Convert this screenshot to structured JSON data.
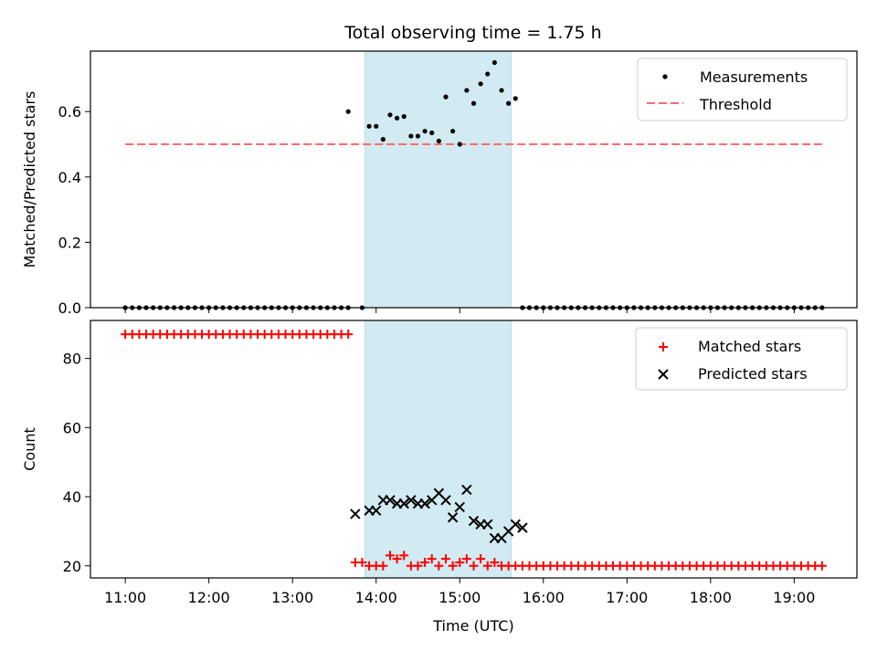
{
  "figure": {
    "title": "Total observing time = 1.75 h"
  },
  "chart_data": [
    {
      "type": "scatter",
      "panel": "top",
      "ylabel": "Matched/Predicted stars",
      "xlabel": "",
      "ylim": [
        0,
        0.785
      ],
      "xlim": [
        "10:35",
        "19:45"
      ],
      "yticks": [
        0.0,
        0.2,
        0.4,
        0.6
      ],
      "ytick_labels": [
        "0.0",
        "0.2",
        "0.4",
        "0.6"
      ],
      "shaded_region": {
        "start": "13:52",
        "end": "15:37",
        "color": "#add8e6"
      },
      "threshold": {
        "name": "Threshold",
        "value": 0.5,
        "start": "11:00",
        "end": "19:20",
        "color": "#ff6b6b",
        "style": "dashed"
      },
      "legend": {
        "placement": "top-right",
        "entries": [
          "Measurements",
          "Threshold"
        ]
      },
      "grid": false,
      "series": [
        {
          "name": "Measurements",
          "color": "#000000",
          "marker": "dot",
          "zero_run_1": {
            "start": "11:00",
            "end": "13:40",
            "step_minutes": 5,
            "value": 0
          },
          "zero_point": {
            "x": "13:50",
            "y": 0
          },
          "points": [
            {
              "x": "13:40",
              "y": 0.6
            },
            {
              "x": "13:55",
              "y": 0.555
            },
            {
              "x": "14:00",
              "y": 0.555
            },
            {
              "x": "14:05",
              "y": 0.515
            },
            {
              "x": "14:10",
              "y": 0.59
            },
            {
              "x": "14:15",
              "y": 0.58
            },
            {
              "x": "14:20",
              "y": 0.585
            },
            {
              "x": "14:25",
              "y": 0.525
            },
            {
              "x": "14:30",
              "y": 0.525
            },
            {
              "x": "14:35",
              "y": 0.54
            },
            {
              "x": "14:40",
              "y": 0.535
            },
            {
              "x": "14:45",
              "y": 0.51
            },
            {
              "x": "14:50",
              "y": 0.645
            },
            {
              "x": "14:55",
              "y": 0.54
            },
            {
              "x": "15:00",
              "y": 0.5
            },
            {
              "x": "15:05",
              "y": 0.665
            },
            {
              "x": "15:10",
              "y": 0.625
            },
            {
              "x": "15:15",
              "y": 0.685
            },
            {
              "x": "15:20",
              "y": 0.715
            },
            {
              "x": "15:25",
              "y": 0.75
            },
            {
              "x": "15:30",
              "y": 0.665
            },
            {
              "x": "15:35",
              "y": 0.625
            },
            {
              "x": "15:40",
              "y": 0.64
            }
          ],
          "zero_run_2": {
            "start": "15:45",
            "end": "19:20",
            "step_minutes": 5,
            "value": 0
          }
        }
      ]
    },
    {
      "type": "scatter",
      "panel": "bottom",
      "ylabel": "Count",
      "xlabel": "Time (UTC)",
      "ylim": [
        16.5,
        91
      ],
      "xlim": [
        "10:35",
        "19:45"
      ],
      "yticks": [
        20,
        40,
        60,
        80
      ],
      "ytick_labels": [
        "20",
        "40",
        "60",
        "80"
      ],
      "xticks": [
        "11:00",
        "12:00",
        "13:00",
        "14:00",
        "15:00",
        "16:00",
        "17:00",
        "18:00",
        "19:00"
      ],
      "shaded_region": {
        "start": "13:52",
        "end": "15:37",
        "color": "#add8e6"
      },
      "legend": {
        "placement": "top-right",
        "entries": [
          "Matched stars",
          "Predicted stars"
        ]
      },
      "grid": false,
      "series": [
        {
          "name": "Matched stars",
          "color": "#ff0000",
          "marker": "plus",
          "run_1": {
            "start": "11:00",
            "end": "13:40",
            "step_minutes": 5,
            "value": 87
          },
          "points": [
            {
              "x": "13:45",
              "y": 21
            },
            {
              "x": "13:50",
              "y": 21
            },
            {
              "x": "13:55",
              "y": 20
            },
            {
              "x": "14:00",
              "y": 20
            },
            {
              "x": "14:05",
              "y": 20
            },
            {
              "x": "14:10",
              "y": 23
            },
            {
              "x": "14:15",
              "y": 22
            },
            {
              "x": "14:20",
              "y": 23
            },
            {
              "x": "14:25",
              "y": 20
            },
            {
              "x": "14:30",
              "y": 20
            },
            {
              "x": "14:35",
              "y": 21
            },
            {
              "x": "14:40",
              "y": 22
            },
            {
              "x": "14:45",
              "y": 20
            },
            {
              "x": "14:50",
              "y": 22
            },
            {
              "x": "14:55",
              "y": 20
            },
            {
              "x": "15:00",
              "y": 21
            },
            {
              "x": "15:05",
              "y": 22
            },
            {
              "x": "15:10",
              "y": 20
            },
            {
              "x": "15:15",
              "y": 22
            },
            {
              "x": "15:20",
              "y": 20
            },
            {
              "x": "15:25",
              "y": 21
            },
            {
              "x": "15:30",
              "y": 20
            },
            {
              "x": "15:35",
              "y": 20
            }
          ],
          "run_2": {
            "start": "15:40",
            "end": "19:20",
            "step_minutes": 5,
            "value": 20
          }
        },
        {
          "name": "Predicted stars",
          "color": "#000000",
          "marker": "x",
          "points": [
            {
              "x": "13:45",
              "y": 35
            },
            {
              "x": "13:55",
              "y": 36
            },
            {
              "x": "14:00",
              "y": 36
            },
            {
              "x": "14:05",
              "y": 39
            },
            {
              "x": "14:10",
              "y": 39
            },
            {
              "x": "14:15",
              "y": 38
            },
            {
              "x": "14:20",
              "y": 38
            },
            {
              "x": "14:25",
              "y": 39
            },
            {
              "x": "14:30",
              "y": 38
            },
            {
              "x": "14:35",
              "y": 38
            },
            {
              "x": "14:40",
              "y": 39
            },
            {
              "x": "14:45",
              "y": 41
            },
            {
              "x": "14:50",
              "y": 39
            },
            {
              "x": "14:55",
              "y": 34
            },
            {
              "x": "15:00",
              "y": 37
            },
            {
              "x": "15:05",
              "y": 42
            },
            {
              "x": "15:10",
              "y": 33
            },
            {
              "x": "15:15",
              "y": 32
            },
            {
              "x": "15:20",
              "y": 32
            },
            {
              "x": "15:25",
              "y": 28
            },
            {
              "x": "15:30",
              "y": 28
            },
            {
              "x": "15:35",
              "y": 30
            },
            {
              "x": "15:40",
              "y": 32
            },
            {
              "x": "15:45",
              "y": 31
            }
          ]
        }
      ]
    }
  ]
}
